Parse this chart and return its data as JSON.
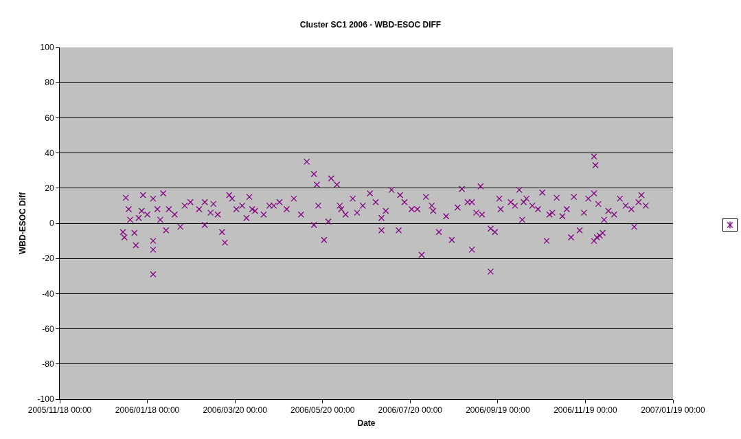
{
  "chart_data": {
    "type": "scatter",
    "title": "Cluster SC1 2006 - WBD-ESOC DIFF",
    "xlabel": "Date",
    "ylabel": "WBD-ESOC Diff",
    "x": [
      "2006-01-01",
      "2006-01-02",
      "2006-01-03",
      "2006-01-05",
      "2006-01-06",
      "2006-01-10",
      "2006-01-09",
      "2006-01-12",
      "2006-01-14",
      "2006-01-15",
      "2006-01-18",
      "2006-01-22",
      "2006-01-22",
      "2006-01-22",
      "2006-01-22",
      "2006-01-25",
      "2006-01-27",
      "2006-01-29",
      "2006-01-31",
      "2006-02-02",
      "2006-02-06",
      "2006-02-10",
      "2006-02-13",
      "2006-02-17",
      "2006-02-23",
      "2006-02-27",
      "2006-02-27",
      "2006-03-03",
      "2006-03-05",
      "2006-03-08",
      "2006-03-11",
      "2006-03-13",
      "2006-03-16",
      "2006-03-18",
      "2006-03-21",
      "2006-03-25",
      "2006-03-28",
      "2006-03-30",
      "2006-04-01",
      "2006-04-03",
      "2006-04-09",
      "2006-04-13",
      "2006-04-16",
      "2006-04-20",
      "2006-04-25",
      "2006-04-30",
      "2006-05-05",
      "2006-05-09",
      "2006-05-14",
      "2006-05-14",
      "2006-05-16",
      "2006-05-17",
      "2006-05-21",
      "2006-05-24",
      "2006-05-26",
      "2006-05-30",
      "2006-06-01",
      "2006-06-02",
      "2006-06-05",
      "2006-06-10",
      "2006-06-13",
      "2006-06-17",
      "2006-06-22",
      "2006-06-26",
      "2006-06-30",
      "2006-06-30",
      "2006-07-03",
      "2006-07-07",
      "2006-07-12",
      "2006-07-13",
      "2006-07-16",
      "2006-07-21",
      "2006-07-25",
      "2006-07-28",
      "2006-07-31",
      "2006-08-04",
      "2006-08-05",
      "2006-08-09",
      "2006-08-14",
      "2006-08-18",
      "2006-08-22",
      "2006-08-25",
      "2006-08-29",
      "2006-09-01",
      "2006-09-01",
      "2006-09-04",
      "2006-09-07",
      "2006-09-08",
      "2006-09-14",
      "2006-09-14",
      "2006-09-17",
      "2006-09-20",
      "2006-09-21",
      "2006-09-28",
      "2006-10-01",
      "2006-10-04",
      "2006-10-06",
      "2006-10-07",
      "2006-10-09",
      "2006-10-13",
      "2006-10-17",
      "2006-10-20",
      "2006-10-23",
      "2006-10-25",
      "2006-10-27",
      "2006-10-30",
      "2006-11-03",
      "2006-11-06",
      "2006-11-09",
      "2006-11-11",
      "2006-11-15",
      "2006-11-18",
      "2006-11-21",
      "2006-11-25",
      "2006-11-25",
      "2006-11-25",
      "2006-11-26",
      "2006-11-27",
      "2006-11-28",
      "2006-11-29",
      "2006-12-01",
      "2006-12-02",
      "2006-12-05",
      "2006-12-09",
      "2006-12-13",
      "2006-12-17",
      "2006-12-21",
      "2006-12-23",
      "2006-12-26",
      "2006-12-28",
      "2006-12-31"
    ],
    "series": [
      {
        "color": "#800080",
        "values": [
          -5,
          -8,
          14.5,
          8,
          2,
          -12.5,
          -5.5,
          3,
          7,
          16,
          5,
          -10,
          -15,
          -29,
          14,
          8,
          2,
          17,
          -4,
          8,
          5,
          -2,
          10,
          12,
          8,
          12,
          -1,
          6,
          11,
          5,
          -5,
          -11,
          16,
          14,
          8,
          10,
          3,
          15,
          8,
          7,
          5,
          10,
          10,
          12,
          8,
          14,
          5,
          35,
          28,
          -1,
          22,
          10,
          -9.5,
          1,
          25.5,
          22,
          10,
          8,
          5,
          14,
          6,
          10,
          17,
          12,
          -4,
          3,
          7,
          19,
          -4,
          16,
          12,
          8,
          8,
          -18,
          15,
          10,
          7,
          -5,
          4,
          -9.5,
          9,
          19.5,
          12,
          -15,
          12,
          6,
          21,
          5,
          -27.5,
          -3,
          -5,
          14,
          8,
          12,
          10,
          19,
          2,
          12,
          14,
          10,
          8,
          17.5,
          -10,
          5,
          6,
          14.5,
          4,
          8,
          -8,
          15,
          -4,
          6,
          14,
          38,
          -10,
          17,
          33,
          -8,
          11,
          -7,
          -5.5,
          2,
          7,
          5,
          14,
          10,
          8,
          -2,
          12,
          16,
          10
        ]
      }
    ],
    "xlim": [
      "2005-11-18",
      "2007-01-19"
    ],
    "xticks": [
      {
        "value": "2005-11-18",
        "label": "2005/11/18 00:00"
      },
      {
        "value": "2006-01-18",
        "label": "2006/01/18 00:00"
      },
      {
        "value": "2006-03-20",
        "label": "2006/03/20 00:00"
      },
      {
        "value": "2006-05-20",
        "label": "2006/05/20 00:00"
      },
      {
        "value": "2006-07-20",
        "label": "2006/07/20 00:00"
      },
      {
        "value": "2006-09-19",
        "label": "2006/09/19 00:00"
      },
      {
        "value": "2006-11-19",
        "label": "2006/11/19 00:00"
      },
      {
        "value": "2007-01-19",
        "label": "2007/01/19 00:00"
      }
    ],
    "ylim": [
      -100,
      100
    ],
    "yticks": [
      -100,
      -80,
      -60,
      -40,
      -20,
      0,
      20,
      40,
      60,
      80,
      100
    ],
    "grid": "y",
    "marker": "cross"
  }
}
